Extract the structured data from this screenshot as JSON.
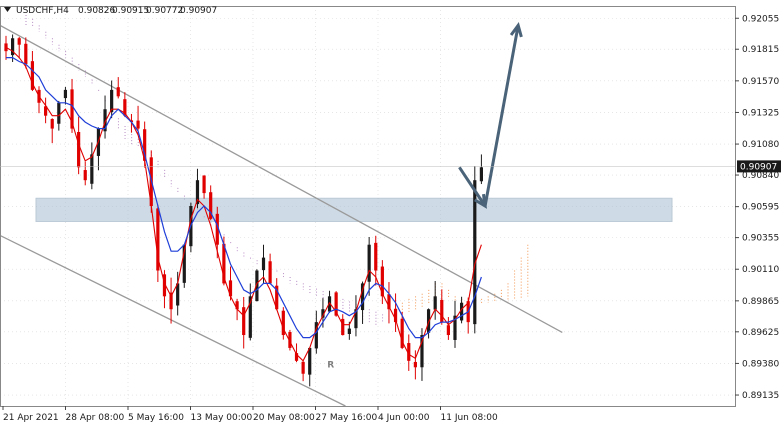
{
  "header": {
    "dropdown_icon": "triangle-down-icon",
    "symbol": "USDCHF,H4",
    "quotes": [
      "0.90826",
      "0.90915",
      "0.90772",
      "0.90907"
    ]
  },
  "colors": {
    "bull": "#1a1a1a",
    "bear": "#e00000",
    "tenkan": "#e00000",
    "kijun": "#1f3fd8",
    "kumo_a": "#f07d28",
    "kumo_b": "#a46fb5",
    "channel": "#9a9a9a",
    "zone": "#aec3d4",
    "arrow": "#4a6378",
    "watermark": "#dde6ee",
    "grid": "#d8d8d8",
    "current_price_box": "#1a1a1a"
  },
  "chart_data": {
    "type": "candlestick",
    "title": "USDCHF,H4",
    "ylim": [
      0.8905,
      0.9215
    ],
    "y_ticks": [
      "0.92055",
      "0.91815",
      "0.91570",
      "0.91325",
      "0.91080",
      "0.90840",
      "0.90595",
      "0.90355",
      "0.90110",
      "0.89865",
      "0.89625",
      "0.89380",
      "0.89135"
    ],
    "x_ticks": [
      "21 Apr 2021",
      "28 Apr 08:00",
      "5 May 16:00",
      "13 May 00:00",
      "20 May 08:00",
      "27 May 16:00",
      "4 Jun 00:00",
      "11 Jun 08:00"
    ],
    "current_price": "0.90907",
    "series_close": [
      0.918,
      0.919,
      0.9185,
      0.917,
      0.915,
      0.914,
      0.913,
      0.912,
      0.914,
      0.915,
      0.912,
      0.909,
      0.908,
      0.91,
      0.912,
      0.9135,
      0.915,
      0.9145,
      0.913,
      0.9125,
      0.912,
      0.9095,
      0.906,
      0.901,
      0.899,
      0.898,
      0.9,
      0.903,
      0.906,
      0.908,
      0.907,
      0.905,
      0.903,
      0.9,
      0.899,
      0.898,
      0.896,
      0.899,
      0.901,
      0.902,
      0.9,
      0.898,
      0.896,
      0.895,
      0.894,
      0.893,
      0.895,
      0.897,
      0.898,
      0.899,
      0.8975,
      0.896,
      0.8965,
      0.898,
      0.9,
      0.903,
      0.901,
      0.899,
      0.898,
      0.897,
      0.895,
      0.894,
      0.8935,
      0.896,
      0.898,
      0.899,
      0.897,
      0.896,
      0.8975,
      0.8985,
      0.897,
      0.908,
      0.909
    ],
    "ichimoku": {
      "tenkan": [
        0.9183,
        0.918,
        0.9175,
        0.9168,
        0.9155,
        0.9145,
        0.9138,
        0.913,
        0.913,
        0.9135,
        0.9125,
        0.9108,
        0.9095,
        0.9098,
        0.911,
        0.9125,
        0.9135,
        0.9135,
        0.9132,
        0.9125,
        0.9115,
        0.9095,
        0.906,
        0.902,
        0.9,
        0.899,
        0.9,
        0.9025,
        0.905,
        0.9065,
        0.906,
        0.9045,
        0.9025,
        0.9005,
        0.899,
        0.898,
        0.8975,
        0.8985,
        0.9,
        0.9005,
        0.8995,
        0.898,
        0.8965,
        0.8955,
        0.8945,
        0.894,
        0.895,
        0.8965,
        0.8975,
        0.8985,
        0.8978,
        0.8968,
        0.8968,
        0.8978,
        0.8995,
        0.901,
        0.9005,
        0.8992,
        0.8982,
        0.8972,
        0.8955,
        0.8945,
        0.8942,
        0.8955,
        0.897,
        0.898,
        0.8975,
        0.8968,
        0.8972,
        0.898,
        0.8985,
        0.9015,
        0.903
      ],
      "kijun": [
        0.9175,
        0.9175,
        0.9172,
        0.917,
        0.9165,
        0.916,
        0.915,
        0.9145,
        0.914,
        0.914,
        0.9138,
        0.913,
        0.9125,
        0.9122,
        0.912,
        0.912,
        0.913,
        0.9135,
        0.913,
        0.9125,
        0.9118,
        0.91,
        0.908,
        0.906,
        0.904,
        0.9025,
        0.9025,
        0.903,
        0.9045,
        0.9055,
        0.906,
        0.9055,
        0.9045,
        0.903,
        0.9015,
        0.9005,
        0.8995,
        0.8992,
        0.8995,
        0.9,
        0.9,
        0.8995,
        0.8985,
        0.8975,
        0.8965,
        0.8958,
        0.8958,
        0.8962,
        0.897,
        0.8978,
        0.898,
        0.8978,
        0.8975,
        0.8978,
        0.8985,
        0.8995,
        0.9,
        0.8998,
        0.8992,
        0.8985,
        0.8975,
        0.8965,
        0.8958,
        0.8958,
        0.8962,
        0.8968,
        0.897,
        0.897,
        0.8972,
        0.8975,
        0.8978,
        0.899,
        0.9005
      ],
      "span_a": [
        0.92,
        0.9198,
        0.9195,
        0.919,
        0.9185,
        0.918,
        0.9175,
        0.917,
        0.9165,
        0.916,
        0.9155,
        0.9148,
        0.914,
        0.913,
        0.912,
        0.9112,
        0.9108,
        0.9105,
        0.91,
        0.9095,
        0.909,
        0.9082,
        0.9075,
        0.907,
        0.9065,
        0.906,
        0.9055,
        0.905,
        0.9045,
        0.904,
        0.9035,
        0.903,
        0.9025,
        0.902,
        0.9018,
        0.9015,
        0.9012,
        0.901,
        0.9008,
        0.9005,
        0.9,
        0.8998,
        0.8995,
        0.8992,
        0.899,
        0.8988,
        0.8985,
        0.8982,
        0.898,
        0.8978,
        0.8975,
        0.8972,
        0.897,
        0.8968,
        0.897,
        0.8975,
        0.898,
        0.8985,
        0.8988,
        0.899,
        0.8992,
        0.8995,
        0.9,
        0.9,
        0.8995,
        0.899,
        0.8988,
        0.8985,
        0.8985,
        0.8988,
        0.899,
        0.8992,
        0.8995,
        0.9,
        0.901,
        0.902,
        0.903
      ],
      "span_b": [
        0.9208,
        0.9205,
        0.92,
        0.9195,
        0.919,
        0.9185,
        0.918,
        0.9175,
        0.917,
        0.9165,
        0.9158,
        0.915,
        0.9142,
        0.9135,
        0.9128,
        0.9122,
        0.9118,
        0.9112,
        0.9108,
        0.9102,
        0.9095,
        0.9088,
        0.908,
        0.9074,
        0.9068,
        0.9062,
        0.9058,
        0.9052,
        0.9048,
        0.9042,
        0.9038,
        0.9032,
        0.9028,
        0.9024,
        0.902,
        0.9018,
        0.9015,
        0.9012,
        0.901,
        0.9008,
        0.9005,
        0.9002,
        0.9,
        0.8998,
        0.8996,
        0.8994,
        0.8992,
        0.899,
        0.8988,
        0.8986,
        0.8984,
        0.8982,
        0.898,
        0.8978,
        0.8976,
        0.8975,
        0.8975,
        0.8976,
        0.8978,
        0.898,
        0.8982,
        0.8984,
        0.8986,
        0.8988,
        0.8988,
        0.8986,
        0.8985,
        0.8984,
        0.8984,
        0.8984,
        0.8985,
        0.8985,
        0.8986,
        0.8986,
        0.8987,
        0.8988,
        0.899
      ]
    },
    "channel_upper": [
      [
        0.0,
        0.92
      ],
      [
        0.765,
        0.8962
      ]
    ],
    "channel_lower": [
      [
        -0.01,
        0.904
      ],
      [
        0.47,
        0.8905
      ]
    ],
    "support_zone": {
      "top": 0.9066,
      "bottom": 0.9048
    },
    "forecast_path": [
      [
        0.625,
        0.909
      ],
      [
        0.66,
        0.906
      ],
      [
        0.705,
        0.92
      ]
    ],
    "watermark": "R",
    "grid": true
  }
}
